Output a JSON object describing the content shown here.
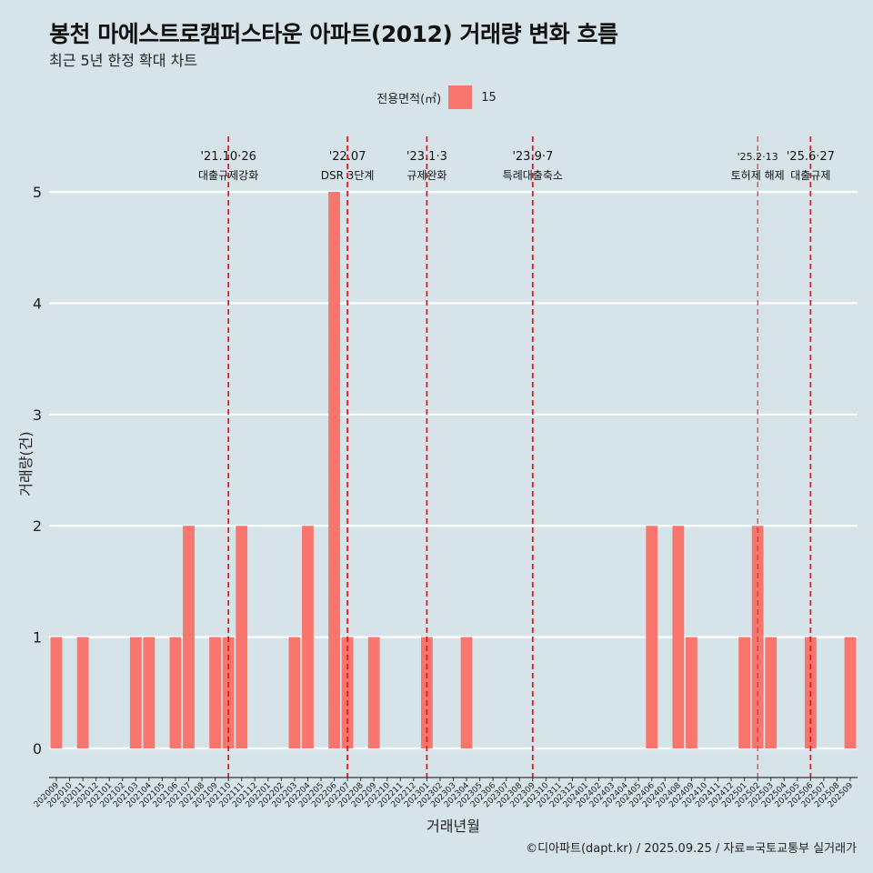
{
  "title": "봉천 마에스트로캠퍼스타운 아파트(2012) 거래량 변화 흐름",
  "subtitle": "최근 5년 한정 확대 차트",
  "legend": {
    "title": "전용면적(㎡)",
    "item": "15"
  },
  "caption": "©디아파트(dapt.kr) / 2025.09.25 / 자료=국토교통부 실거래가",
  "chart_data": {
    "type": "bar",
    "xlabel": "거래년월",
    "ylabel": "거래량(건)",
    "ylim": [
      0,
      5
    ],
    "yticks": [
      0,
      1,
      2,
      3,
      4,
      5
    ],
    "grid": true,
    "legend_position": "top",
    "series": [
      {
        "name": "15",
        "color": "#f8766d"
      }
    ],
    "categories": [
      "202009",
      "202010",
      "202011",
      "202012",
      "202101",
      "202102",
      "202103",
      "202104",
      "202105",
      "202106",
      "202107",
      "202108",
      "202109",
      "202110",
      "202111",
      "202112",
      "202201",
      "202202",
      "202203",
      "202204",
      "202205",
      "202206",
      "202207",
      "202208",
      "202209",
      "202210",
      "202211",
      "202212",
      "202301",
      "202302",
      "202303",
      "202304",
      "202305",
      "202306",
      "202307",
      "202308",
      "202309",
      "202310",
      "202311",
      "202312",
      "202401",
      "202402",
      "202403",
      "202404",
      "202405",
      "202406",
      "202407",
      "202408",
      "202409",
      "202410",
      "202411",
      "202412",
      "202501",
      "202502",
      "202503",
      "202504",
      "202505",
      "202506",
      "202507",
      "202508",
      "202509"
    ],
    "values": [
      1,
      0,
      1,
      0,
      0,
      0,
      1,
      1,
      0,
      1,
      2,
      0,
      1,
      1,
      2,
      0,
      0,
      0,
      1,
      2,
      0,
      5,
      1,
      0,
      1,
      0,
      0,
      0,
      1,
      0,
      0,
      1,
      0,
      0,
      0,
      0,
      0,
      0,
      0,
      0,
      0,
      0,
      0,
      0,
      0,
      2,
      0,
      2,
      1,
      0,
      0,
      0,
      1,
      2,
      1,
      0,
      0,
      1,
      0,
      0,
      1
    ],
    "events": [
      {
        "date": "'21.10·26",
        "label": "대출규제강화",
        "category": "202110",
        "offset": 0
      },
      {
        "date": "'22.07",
        "label": "DSR 3단계",
        "category": "202207",
        "offset": 0
      },
      {
        "date": "'23.1·3",
        "label": "규제완화",
        "category": "202301",
        "offset": 0
      },
      {
        "date": "'23.9·7",
        "label": "특례대출축소",
        "category": "202309",
        "offset": 0
      },
      {
        "date": "'25.2·13",
        "label": "토허제 해제",
        "category": "202502",
        "offset": 0,
        "thin": true
      },
      {
        "date": "'25.6·27",
        "label": "대출규제",
        "category": "202506",
        "offset": 0
      }
    ]
  }
}
